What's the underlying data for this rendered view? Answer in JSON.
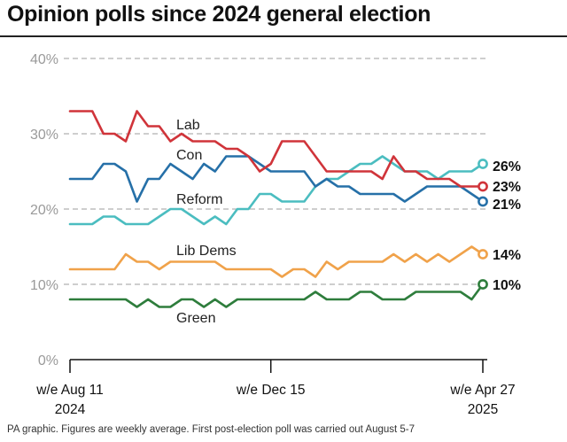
{
  "title": "Opinion polls since 2024 general election",
  "footer": "PA graphic. Figures are weekly average. First post-election poll was carried out August 5-7",
  "colors": {
    "Lab": "#d0343a",
    "Con": "#2670a8",
    "Reform": "#4bbdc0",
    "Lib Dems": "#f0a24a",
    "Green": "#2e7d3c",
    "grid": "#9e9e9e",
    "axis": "#111111",
    "tick_text": "#9a9a9a"
  },
  "chart_data": {
    "type": "line",
    "title": "Opinion polls since 2024 general election",
    "xlabel": "",
    "ylabel": "",
    "ylim": [
      0,
      40
    ],
    "yticks": [
      "0%",
      "10%",
      "20%",
      "30%",
      "40%"
    ],
    "ytick_values": [
      0,
      10,
      20,
      30,
      40
    ],
    "grid": true,
    "week_count": 38,
    "x_ticks": [
      {
        "index": 0,
        "line1": "w/e Aug 11",
        "line2": "2024"
      },
      {
        "index": 18,
        "line1": "w/e Dec 15",
        "line2": ""
      },
      {
        "index": 37,
        "line1": "w/e Apr 27",
        "line2": "2025"
      }
    ],
    "series": [
      {
        "name": "Lab",
        "label": "Lab",
        "end_label": "23%",
        "values": [
          33,
          33,
          33,
          30,
          30,
          29,
          33,
          31,
          31,
          29,
          30,
          29,
          29,
          29,
          28,
          28,
          27,
          25,
          26,
          29,
          29,
          29,
          27,
          25,
          25,
          25,
          25,
          25,
          24,
          27,
          25,
          25,
          24,
          24,
          24,
          23,
          23,
          23
        ]
      },
      {
        "name": "Con",
        "label": "Con",
        "end_label": "21%",
        "values": [
          24,
          24,
          24,
          26,
          26,
          25,
          21,
          24,
          24,
          26,
          25,
          24,
          26,
          25,
          27,
          27,
          27,
          26,
          25,
          25,
          25,
          25,
          23,
          24,
          23,
          23,
          22,
          22,
          22,
          22,
          21,
          22,
          23,
          23,
          23,
          23,
          22,
          21
        ]
      },
      {
        "name": "Reform",
        "label": "Reform",
        "end_label": "26%",
        "values": [
          18,
          18,
          18,
          19,
          19,
          18,
          18,
          18,
          19,
          20,
          20,
          19,
          18,
          19,
          18,
          20,
          20,
          22,
          22,
          21,
          21,
          21,
          23,
          24,
          24,
          25,
          26,
          26,
          27,
          26,
          25,
          25,
          25,
          24,
          25,
          25,
          25,
          26
        ]
      },
      {
        "name": "Lib Dems",
        "label": "Lib Dems",
        "end_label": "14%",
        "values": [
          12,
          12,
          12,
          12,
          12,
          14,
          13,
          13,
          12,
          13,
          13,
          13,
          13,
          13,
          12,
          12,
          12,
          12,
          12,
          11,
          12,
          12,
          11,
          13,
          12,
          13,
          13,
          13,
          13,
          14,
          13,
          14,
          13,
          14,
          13,
          14,
          15,
          14
        ]
      },
      {
        "name": "Green",
        "label": "Green",
        "end_label": "10%",
        "values": [
          8,
          8,
          8,
          8,
          8,
          8,
          7,
          8,
          7,
          7,
          8,
          8,
          7,
          8,
          7,
          8,
          8,
          8,
          8,
          8,
          8,
          8,
          9,
          8,
          8,
          8,
          9,
          9,
          8,
          8,
          8,
          9,
          9,
          9,
          9,
          9,
          8,
          10
        ]
      }
    ]
  }
}
